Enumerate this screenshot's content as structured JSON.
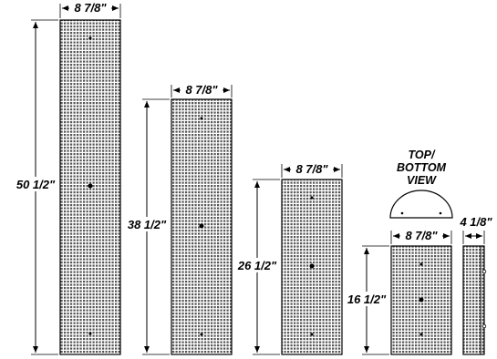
{
  "fixtures": [
    {
      "id": "tall",
      "width_label": "8 7/8\"",
      "height_label": "50 1/2\""
    },
    {
      "id": "medium",
      "width_label": "8 7/8\"",
      "height_label": "38 1/2\""
    },
    {
      "id": "short",
      "width_label": "8 7/8\"",
      "height_label": "26 1/2\""
    },
    {
      "id": "small",
      "width_label": "8 7/8\"",
      "height_label": "16 1/2\""
    }
  ],
  "side_view": {
    "depth_label": "4 1/8\""
  },
  "top_bottom_view": {
    "title_lines": [
      "TOP/",
      "BOTTOM",
      "VIEW"
    ]
  },
  "colors": {
    "line": "#000000",
    "perforation": "#555555",
    "background": "#ffffff"
  }
}
